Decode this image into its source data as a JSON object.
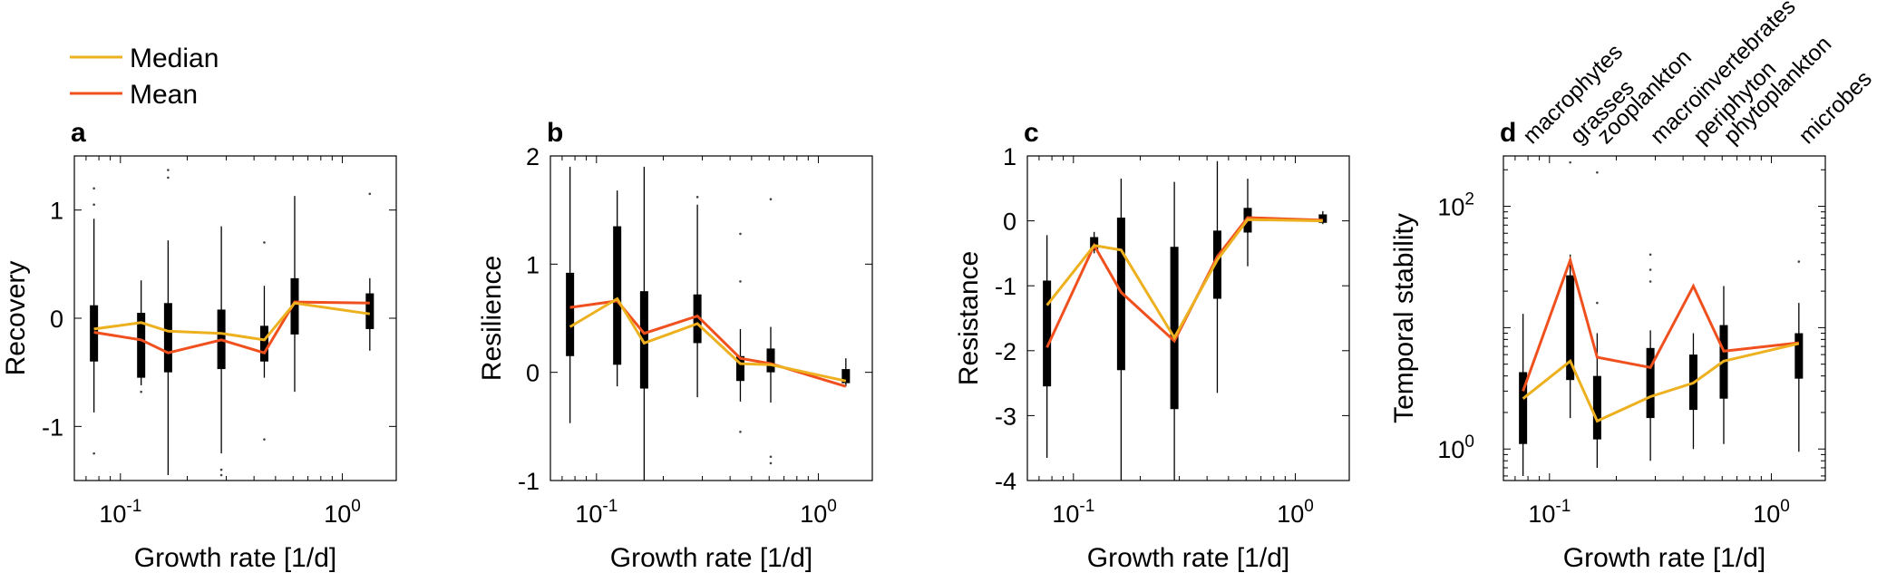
{
  "legend": [
    {
      "label": "Median",
      "color": "#EDB120"
    },
    {
      "label": "Mean",
      "color": "#F0501E"
    }
  ],
  "colors": {
    "median": "#EDB120",
    "mean": "#F0501E",
    "box": "#000000"
  },
  "category_labels": [
    "macrophytes",
    "grasses",
    "zooplankton",
    "macroinvertebrates",
    "periphyton",
    "phytoplankton",
    "microbes"
  ],
  "chart_data": [
    {
      "panel": "a",
      "type": "box",
      "xlabel": "Growth rate [1/d]",
      "ylabel": "Recovery",
      "xscale": "log",
      "xlim": [
        0.062,
        1.75
      ],
      "xticks": [
        {
          "v": 0.1,
          "b": "10",
          "e": "-1"
        },
        {
          "v": 1,
          "b": "10",
          "e": "0"
        }
      ],
      "ylim": [
        -1.5,
        1.5
      ],
      "yticks": [
        {
          "v": -1,
          "label": "-1"
        },
        {
          "v": 0,
          "label": "0"
        },
        {
          "v": 1,
          "label": "1"
        }
      ],
      "x": [
        0.076,
        0.124,
        0.164,
        0.285,
        0.445,
        0.61,
        1.33
      ],
      "q1": [
        -0.4,
        -0.55,
        -0.5,
        -0.47,
        -0.4,
        -0.15,
        -0.1
      ],
      "q3": [
        0.12,
        0.05,
        0.14,
        0.08,
        -0.07,
        0.37,
        0.23
      ],
      "whisker_low": [
        -0.87,
        -0.62,
        -1.45,
        -1.25,
        -0.55,
        -0.68,
        -0.3
      ],
      "whisker_high": [
        0.92,
        0.35,
        0.72,
        0.85,
        0.3,
        1.13,
        0.37
      ],
      "outliers": [
        [
          [
            0.076,
            1.2
          ],
          [
            0.076,
            1.05
          ],
          [
            0.076,
            -1.25
          ]
        ],
        [
          [
            0.124,
            -0.68
          ]
        ],
        [
          [
            0.164,
            1.3
          ],
          [
            0.164,
            1.37
          ]
        ],
        [
          [
            0.285,
            -1.4
          ],
          [
            0.285,
            -1.45
          ]
        ],
        [
          [
            0.445,
            0.7
          ],
          [
            0.445,
            -1.12
          ]
        ],
        [],
        [
          [
            1.33,
            1.15
          ]
        ]
      ],
      "median": [
        -0.1,
        -0.04,
        -0.12,
        -0.14,
        -0.2,
        0.14,
        0.04
      ],
      "mean": [
        -0.13,
        -0.2,
        -0.32,
        -0.2,
        -0.32,
        0.15,
        0.14
      ]
    },
    {
      "panel": "b",
      "type": "box",
      "xlabel": "Growth rate [1/d]",
      "ylabel": "Resilience",
      "xscale": "log",
      "xlim": [
        0.062,
        1.75
      ],
      "xticks": [
        {
          "v": 0.1,
          "b": "10",
          "e": "-1"
        },
        {
          "v": 1,
          "b": "10",
          "e": "0"
        }
      ],
      "ylim": [
        -1,
        2
      ],
      "yticks": [
        {
          "v": -1,
          "label": "-1"
        },
        {
          "v": 0,
          "label": "0"
        },
        {
          "v": 1,
          "label": "1"
        },
        {
          "v": 2,
          "label": "2"
        }
      ],
      "x": [
        0.076,
        0.124,
        0.164,
        0.285,
        0.445,
        0.61,
        1.33
      ],
      "q1": [
        0.15,
        0.07,
        -0.15,
        0.27,
        -0.08,
        0.0,
        -0.1
      ],
      "q3": [
        0.92,
        1.35,
        0.75,
        0.72,
        0.15,
        0.22,
        0.03
      ],
      "whisker_low": [
        -0.47,
        -0.13,
        -1.0,
        -0.23,
        -0.27,
        -0.28,
        -0.13
      ],
      "whisker_high": [
        1.9,
        1.68,
        1.9,
        1.55,
        0.4,
        0.42,
        0.13
      ],
      "outliers": [
        [],
        [],
        [],
        [
          [
            0.285,
            1.62
          ]
        ],
        [
          [
            0.445,
            1.28
          ],
          [
            0.445,
            0.84
          ],
          [
            0.445,
            -0.55
          ]
        ],
        [
          [
            0.61,
            -0.78
          ],
          [
            0.61,
            -0.84
          ],
          [
            0.61,
            1.6
          ]
        ],
        []
      ],
      "median": [
        0.42,
        0.68,
        0.27,
        0.45,
        0.08,
        0.07,
        -0.08
      ],
      "mean": [
        0.6,
        0.66,
        0.36,
        0.52,
        0.13,
        0.08,
        -0.13
      ]
    },
    {
      "panel": "c",
      "type": "box",
      "xlabel": "Growth rate [1/d]",
      "ylabel": "Resistance",
      "xscale": "log",
      "xlim": [
        0.062,
        1.75
      ],
      "xticks": [
        {
          "v": 0.1,
          "b": "10",
          "e": "-1"
        },
        {
          "v": 1,
          "b": "10",
          "e": "0"
        }
      ],
      "ylim": [
        -4,
        1
      ],
      "yticks": [
        {
          "v": -4,
          "label": "-4"
        },
        {
          "v": -3,
          "label": "-3"
        },
        {
          "v": -2,
          "label": "-2"
        },
        {
          "v": -1,
          "label": "-1"
        },
        {
          "v": 0,
          "label": "0"
        },
        {
          "v": 1,
          "label": "1"
        }
      ],
      "x": [
        0.076,
        0.124,
        0.164,
        0.285,
        0.445,
        0.61,
        1.33
      ],
      "q1": [
        -2.55,
        -0.45,
        -2.3,
        -2.9,
        -1.2,
        -0.18,
        -0.03
      ],
      "q3": [
        -0.92,
        -0.25,
        0.05,
        -0.4,
        -0.15,
        0.2,
        0.1
      ],
      "whisker_low": [
        -3.65,
        -0.5,
        -4.0,
        -4.0,
        -2.65,
        -0.7,
        -0.05
      ],
      "whisker_high": [
        -0.22,
        -0.17,
        0.65,
        0.6,
        0.92,
        0.65,
        0.15
      ],
      "outliers": [
        [],
        [],
        [],
        [],
        [],
        [],
        []
      ],
      "median": [
        -1.3,
        -0.38,
        -0.45,
        -1.8,
        -0.6,
        0.02,
        0.0
      ],
      "mean": [
        -1.95,
        -0.38,
        -1.1,
        -1.85,
        -0.55,
        0.05,
        0.01
      ]
    },
    {
      "panel": "d",
      "type": "box",
      "xlabel": "Growth rate [1/d]",
      "ylabel": "Temporal stability",
      "xscale": "log",
      "yscale": "log",
      "xlim": [
        0.062,
        1.75
      ],
      "xticks": [
        {
          "v": 0.1,
          "b": "10",
          "e": "-1"
        },
        {
          "v": 1,
          "b": "10",
          "e": "0"
        }
      ],
      "ylim": [
        0.55,
        260
      ],
      "yticks": [
        {
          "v": 1,
          "b": "10",
          "e": "0"
        },
        {
          "v": 100,
          "b": "10",
          "e": "2"
        }
      ],
      "x": [
        0.076,
        0.124,
        0.164,
        0.285,
        0.445,
        0.61,
        1.33
      ],
      "q1": [
        1.1,
        3.7,
        1.2,
        1.8,
        2.1,
        2.6,
        3.8
      ],
      "q3": [
        4.3,
        27.0,
        4.0,
        6.8,
        6.0,
        10.5,
        9.0
      ],
      "whisker_low": [
        0.6,
        1.8,
        0.7,
        0.8,
        1.0,
        1.1,
        0.95
      ],
      "whisker_high": [
        13.0,
        40.0,
        9.0,
        9.5,
        9.0,
        22.0,
        16.0
      ],
      "outliers": [
        [],
        [
          [
            0.124,
            230
          ]
        ],
        [
          [
            0.164,
            190
          ],
          [
            0.164,
            16
          ]
        ],
        [
          [
            0.285,
            40
          ],
          [
            0.285,
            30
          ],
          [
            0.285,
            24
          ]
        ],
        [],
        [],
        [
          [
            1.33,
            35
          ]
        ]
      ],
      "median": [
        2.6,
        5.3,
        1.7,
        2.7,
        3.5,
        5.3,
        7.4
      ],
      "mean": [
        3.0,
        36.0,
        5.7,
        4.7,
        22.0,
        6.4,
        7.5
      ],
      "category_labels": [
        "macrophytes",
        "grasses",
        "zooplankton",
        "macroinvertebrates",
        "periphyton",
        "phytoplankton",
        "microbes"
      ]
    }
  ]
}
